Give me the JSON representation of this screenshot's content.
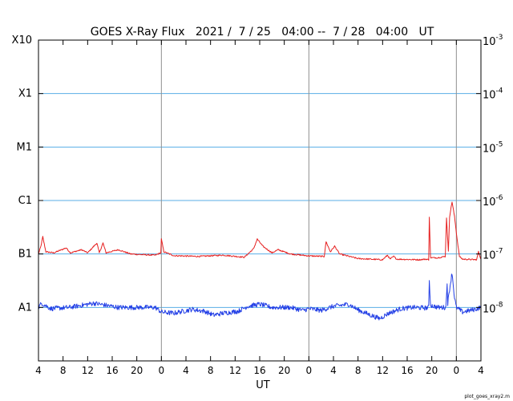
{
  "chart_data": {
    "type": "line",
    "title": "GOES X-Ray Flux   2021 /  7 / 25   04:00 --  7 / 28   04:00   UT",
    "xlabel": "UT",
    "x_tick_labels": [
      "4",
      "8",
      "12",
      "16",
      "20",
      "0",
      "4",
      "8",
      "12",
      "16",
      "20",
      "0",
      "4",
      "8",
      "12",
      "16",
      "20",
      "0",
      "4"
    ],
    "x_range_hours": [
      0,
      72
    ],
    "day_boundaries_hours": [
      20,
      44,
      68
    ],
    "y_scale": "log",
    "ylim": [
      1e-09,
      0.001
    ],
    "left_ticks": [
      {
        "label": "X10",
        "value": 0.001
      },
      {
        "label": "X1",
        "value": 0.0001
      },
      {
        "label": "M1",
        "value": 1e-05
      },
      {
        "label": "C1",
        "value": 1e-06
      },
      {
        "label": "B1",
        "value": 1e-07
      },
      {
        "label": "A1",
        "value": 1e-08
      }
    ],
    "right_ticks": [
      {
        "base": "10",
        "exp": "-3",
        "value": 0.001
      },
      {
        "base": "10",
        "exp": "-4",
        "value": 0.0001
      },
      {
        "base": "10",
        "exp": "-5",
        "value": 1e-05
      },
      {
        "base": "10",
        "exp": "-6",
        "value": 1e-06
      },
      {
        "base": "10",
        "exp": "-7",
        "value": 1e-07
      },
      {
        "base": "10",
        "exp": "-8",
        "value": 1e-08
      }
    ],
    "grid_horizontal": [
      0.0001,
      1e-05,
      1e-06,
      1e-07,
      1e-08
    ],
    "grid_color": "#5aaee6",
    "day_line_color": "#909090",
    "series": [
      {
        "color": "#e62020",
        "points": [
          [
            0,
            1e-07
          ],
          [
            0.4,
            1.4e-07
          ],
          [
            0.7,
            2.1e-07
          ],
          [
            1.2,
            1.1e-07
          ],
          [
            2.5,
            1.05e-07
          ],
          [
            4.5,
            1.3e-07
          ],
          [
            5.2,
            1.05e-07
          ],
          [
            7,
            1.2e-07
          ],
          [
            8,
            1.05e-07
          ],
          [
            9.5,
            1.6e-07
          ],
          [
            9.9,
            1.05e-07
          ],
          [
            10.5,
            1.6e-07
          ],
          [
            11,
            1.05e-07
          ],
          [
            13,
            1.2e-07
          ],
          [
            15,
            1e-07
          ],
          [
            17,
            9.7e-08
          ],
          [
            19,
            9.5e-08
          ],
          [
            19.9,
            1.05e-07
          ],
          [
            20,
            1.9e-07
          ],
          [
            20.4,
            1.1e-07
          ],
          [
            22,
            9.3e-08
          ],
          [
            26,
            9e-08
          ],
          [
            30,
            9.5e-08
          ],
          [
            33.5,
            8.7e-08
          ],
          [
            35,
            1.25e-07
          ],
          [
            35.6,
            1.9e-07
          ],
          [
            36.5,
            1.4e-07
          ],
          [
            38,
            1.05e-07
          ],
          [
            39,
            1.2e-07
          ],
          [
            41,
            1e-07
          ],
          [
            44,
            9.2e-08
          ],
          [
            46.5,
            9e-08
          ],
          [
            46.8,
            1.7e-07
          ],
          [
            47.5,
            1.1e-07
          ],
          [
            48.2,
            1.4e-07
          ],
          [
            49,
            1e-07
          ],
          [
            52,
            8.2e-08
          ],
          [
            56,
            7.8e-08
          ],
          [
            56.8,
            9.5e-08
          ],
          [
            57.2,
            8e-08
          ],
          [
            57.8,
            9e-08
          ],
          [
            58.3,
            8e-08
          ],
          [
            62,
            7.8e-08
          ],
          [
            63,
            8e-08
          ],
          [
            63.5,
            7.8e-08
          ],
          [
            63.6,
            5e-07
          ],
          [
            63.8,
            8.5e-08
          ],
          [
            65,
            8.5e-08
          ],
          [
            66.2,
            9e-08
          ],
          [
            66.4,
            4.8e-07
          ],
          [
            66.7,
            1.1e-07
          ],
          [
            66.9,
            5e-07
          ],
          [
            67.3,
            9.5e-07
          ],
          [
            67.7,
            5e-07
          ],
          [
            68.1,
            2e-07
          ],
          [
            68.5,
            9e-08
          ],
          [
            69,
            8e-08
          ],
          [
            71.3,
            7.8e-08
          ],
          [
            71.6,
            1.1e-07
          ],
          [
            72,
            8e-08
          ]
        ]
      },
      {
        "color": "#2440e6",
        "points": [
          [
            0,
            1e-08
          ],
          [
            0.5,
            1.2e-08
          ],
          [
            2,
            9.5e-09
          ],
          [
            5,
            1e-08
          ],
          [
            9,
            1.2e-08
          ],
          [
            13,
            1e-08
          ],
          [
            17,
            1e-08
          ],
          [
            19,
            1e-08
          ],
          [
            20,
            8.2e-09
          ],
          [
            22,
            7.8e-09
          ],
          [
            25,
            9.2e-09
          ],
          [
            27,
            8.5e-09
          ],
          [
            28.5,
            7.2e-09
          ],
          [
            30,
            7.8e-09
          ],
          [
            32.5,
            8.5e-09
          ],
          [
            34,
            1.05e-08
          ],
          [
            36,
            1.15e-08
          ],
          [
            38,
            1e-08
          ],
          [
            41,
            1e-08
          ],
          [
            43,
            8.8e-09
          ],
          [
            44,
            9.5e-09
          ],
          [
            46,
            8.8e-09
          ],
          [
            48,
            1.05e-08
          ],
          [
            50.5,
            1.15e-08
          ],
          [
            52,
            9e-09
          ],
          [
            54,
            7.2e-09
          ],
          [
            55.5,
            6.2e-09
          ],
          [
            57,
            7.8e-09
          ],
          [
            59,
            9.5e-09
          ],
          [
            61,
            1e-08
          ],
          [
            63,
            9.8e-09
          ],
          [
            63.5,
            1e-08
          ],
          [
            63.6,
            3.2e-08
          ],
          [
            63.8,
            1.1e-08
          ],
          [
            65,
            1e-08
          ],
          [
            66.3,
            1e-08
          ],
          [
            66.5,
            3e-08
          ],
          [
            66.6,
            1.2e-08
          ],
          [
            66.9,
            2.2e-08
          ],
          [
            67.3,
            4.5e-08
          ],
          [
            67.7,
            1.5e-08
          ],
          [
            68,
            1e-08
          ],
          [
            69,
            8.2e-09
          ],
          [
            71,
            9.2e-09
          ],
          [
            72,
            1e-08
          ]
        ]
      }
    ],
    "credit": "plot_goes_xray2.m"
  }
}
